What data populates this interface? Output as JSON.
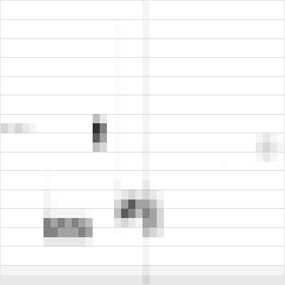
{
  "chart_data": {
    "type": "heatmap",
    "color": "#000000",
    "grid": true,
    "tick_labels": false,
    "xlim": [
      -0.5,
      39.5
    ],
    "ylim": [
      -0.5,
      29.5
    ],
    "zlim": [
      0,
      10
    ],
    "yticks": [
      1.5,
      3.5,
      5.5,
      7.5,
      9.5,
      11.5,
      13.5,
      15.5,
      17.5,
      19.5,
      21.5,
      23.5,
      25.5,
      27.5
    ],
    "cells": [
      [
        3,
        3,
        3,
        3,
        3,
        3,
        3,
        3,
        3,
        3,
        3,
        3,
        3,
        3,
        3,
        3,
        3,
        3,
        3,
        3,
        4,
        3,
        3,
        3,
        3,
        3,
        3,
        3,
        3,
        3,
        3,
        3,
        3,
        3,
        3,
        3,
        3,
        3,
        3,
        3
      ],
      [
        2,
        2,
        2,
        2,
        2,
        2,
        2,
        2,
        2,
        2,
        2,
        2,
        2,
        2,
        2,
        2,
        2,
        2,
        2,
        2,
        3,
        2,
        2,
        2,
        2,
        2,
        2,
        2,
        2,
        2,
        2,
        2,
        2,
        2,
        2,
        2,
        2,
        2,
        2,
        2
      ],
      [
        0,
        0,
        0,
        0,
        0,
        0,
        0,
        0,
        0,
        0,
        0,
        0,
        0,
        0,
        0,
        0,
        0,
        0,
        0,
        0,
        2,
        0,
        0,
        0,
        0,
        0,
        0,
        0,
        0,
        0,
        0,
        0,
        0,
        0,
        0,
        0,
        0,
        0,
        0,
        0
      ],
      [
        0,
        0,
        0,
        0,
        0,
        0,
        0,
        0,
        0,
        0,
        0,
        0,
        0,
        0,
        0,
        0,
        0,
        0,
        0,
        0,
        2,
        0,
        0,
        0,
        0,
        0,
        0,
        0,
        0,
        0,
        0,
        0,
        0,
        0,
        0,
        0,
        0,
        0,
        0,
        0
      ],
      [
        0,
        0,
        0,
        0,
        0,
        0,
        3,
        3,
        3,
        3,
        3,
        3,
        2,
        0,
        0,
        0,
        0,
        0,
        0,
        0,
        2,
        0,
        0,
        0,
        0,
        0,
        0,
        0,
        0,
        0,
        0,
        0,
        0,
        0,
        0,
        0,
        0,
        0,
        0,
        0
      ],
      [
        0,
        0,
        0,
        0,
        0,
        0,
        7,
        7,
        6,
        6,
        6,
        7,
        6,
        0,
        0,
        0,
        1,
        0,
        0,
        0,
        5,
        4,
        3,
        0,
        0,
        0,
        0,
        0,
        0,
        0,
        0,
        0,
        0,
        0,
        0,
        0,
        0,
        0,
        0,
        0
      ],
      [
        0,
        0,
        0,
        0,
        0,
        0,
        7,
        6,
        7,
        6,
        7,
        6,
        5,
        0,
        0,
        0,
        3,
        4,
        3,
        2,
        6,
        6,
        4,
        0,
        0,
        0,
        0,
        0,
        0,
        0,
        0,
        0,
        0,
        0,
        0,
        0,
        0,
        0,
        0,
        0
      ],
      [
        0,
        0,
        0,
        0,
        0,
        0,
        3,
        2,
        2,
        2,
        2,
        2,
        1,
        0,
        0,
        0,
        5,
        8,
        7,
        5,
        7,
        6,
        4,
        0,
        0,
        0,
        0,
        0,
        0,
        0,
        0,
        0,
        0,
        0,
        0,
        0,
        0,
        0,
        0,
        0
      ],
      [
        0,
        0,
        0,
        0,
        0,
        0,
        2,
        1,
        0,
        0,
        0,
        0,
        0,
        0,
        0,
        0,
        4,
        6,
        8,
        6,
        6,
        5,
        3,
        0,
        0,
        0,
        0,
        0,
        0,
        0,
        0,
        0,
        0,
        0,
        0,
        0,
        0,
        0,
        0,
        0
      ],
      [
        0,
        0,
        0,
        0,
        0,
        0,
        2,
        0,
        0,
        0,
        0,
        0,
        0,
        0,
        0,
        0,
        2,
        3,
        4,
        3,
        4,
        3,
        2,
        0,
        0,
        0,
        0,
        0,
        0,
        0,
        0,
        0,
        0,
        0,
        0,
        0,
        0,
        0,
        0,
        0
      ],
      [
        0,
        0,
        0,
        0,
        0,
        0,
        1,
        0,
        0,
        0,
        0,
        0,
        0,
        0,
        0,
        0,
        2,
        0,
        0,
        0,
        3,
        0,
        0,
        0,
        0,
        0,
        0,
        0,
        0,
        0,
        0,
        0,
        0,
        0,
        0,
        0,
        0,
        0,
        0,
        0
      ],
      [
        0,
        0,
        0,
        0,
        0,
        0,
        1,
        0,
        0,
        0,
        0,
        0,
        0,
        0,
        0,
        0,
        1,
        0,
        0,
        0,
        2,
        0,
        0,
        0,
        0,
        0,
        0,
        0,
        0,
        0,
        0,
        0,
        0,
        0,
        0,
        0,
        0,
        0,
        0,
        0
      ],
      [
        0,
        0,
        0,
        0,
        0,
        0,
        0,
        0,
        0,
        0,
        0,
        0,
        0,
        0,
        0,
        0,
        1,
        0,
        0,
        0,
        2,
        0,
        0,
        0,
        0,
        0,
        0,
        0,
        0,
        0,
        0,
        1,
        0,
        0,
        0,
        0,
        0,
        0,
        0,
        0
      ],
      [
        0,
        0,
        0,
        0,
        0,
        0,
        0,
        0,
        0,
        0,
        0,
        0,
        0,
        0,
        0,
        0,
        1,
        0,
        0,
        0,
        2,
        0,
        0,
        0,
        0,
        0,
        0,
        0,
        0,
        0,
        0,
        0,
        0,
        0,
        0,
        0,
        2,
        3,
        2,
        1
      ],
      [
        0,
        0,
        0,
        0,
        0,
        0,
        0,
        0,
        0,
        0,
        0,
        0,
        0,
        5,
        4,
        0,
        1,
        0,
        0,
        0,
        2,
        0,
        0,
        0,
        0,
        0,
        0,
        0,
        0,
        0,
        0,
        0,
        0,
        0,
        0,
        0,
        3,
        4,
        3,
        2
      ],
      [
        0,
        0,
        0,
        0,
        0,
        0,
        0,
        0,
        0,
        0,
        0,
        0,
        0,
        8,
        6,
        0,
        1,
        0,
        0,
        0,
        2,
        0,
        0,
        0,
        0,
        0,
        0,
        0,
        0,
        0,
        0,
        0,
        0,
        0,
        0,
        0,
        2,
        3,
        2,
        1
      ],
      [
        4,
        3,
        4,
        3,
        2,
        0,
        0,
        0,
        0,
        0,
        0,
        0,
        0,
        9,
        7,
        0,
        1,
        0,
        0,
        0,
        2,
        0,
        0,
        0,
        0,
        0,
        0,
        0,
        0,
        0,
        0,
        0,
        0,
        0,
        0,
        0,
        0,
        0,
        0,
        0
      ],
      [
        0,
        0,
        0,
        0,
        0,
        0,
        0,
        0,
        0,
        0,
        0,
        0,
        0,
        5,
        3,
        0,
        1,
        0,
        0,
        0,
        2,
        0,
        0,
        0,
        0,
        0,
        0,
        0,
        0,
        0,
        0,
        0,
        0,
        0,
        0,
        0,
        0,
        0,
        0,
        0
      ],
      [
        0,
        0,
        0,
        0,
        0,
        0,
        0,
        0,
        0,
        0,
        0,
        0,
        0,
        0,
        0,
        0,
        1,
        0,
        0,
        0,
        2,
        0,
        0,
        0,
        0,
        0,
        0,
        0,
        0,
        0,
        0,
        0,
        0,
        0,
        0,
        0,
        0,
        0,
        0,
        0
      ],
      [
        0,
        0,
        0,
        0,
        0,
        0,
        0,
        0,
        0,
        0,
        0,
        0,
        0,
        0,
        0,
        0,
        1,
        0,
        0,
        0,
        2,
        0,
        0,
        0,
        0,
        0,
        0,
        0,
        0,
        0,
        0,
        0,
        0,
        0,
        0,
        0,
        0,
        0,
        0,
        0
      ],
      [
        0,
        0,
        0,
        0,
        0,
        0,
        0,
        0,
        0,
        0,
        0,
        0,
        0,
        0,
        0,
        0,
        1,
        0,
        0,
        0,
        2,
        0,
        0,
        0,
        0,
        0,
        0,
        0,
        0,
        0,
        0,
        0,
        0,
        0,
        0,
        0,
        0,
        0,
        0,
        0
      ],
      [
        0,
        0,
        0,
        0,
        0,
        0,
        0,
        0,
        0,
        0,
        0,
        0,
        0,
        0,
        0,
        0,
        1,
        0,
        0,
        0,
        2,
        0,
        0,
        0,
        0,
        0,
        0,
        0,
        0,
        0,
        0,
        0,
        0,
        0,
        0,
        0,
        0,
        0,
        0,
        0
      ],
      [
        0,
        0,
        0,
        0,
        0,
        0,
        0,
        0,
        0,
        0,
        0,
        0,
        0,
        0,
        0,
        0,
        1,
        0,
        0,
        0,
        2,
        0,
        0,
        0,
        0,
        0,
        0,
        0,
        0,
        0,
        0,
        0,
        0,
        0,
        0,
        0,
        0,
        0,
        0,
        0
      ],
      [
        0,
        0,
        0,
        0,
        0,
        0,
        0,
        0,
        0,
        0,
        0,
        0,
        0,
        0,
        0,
        0,
        1,
        0,
        0,
        0,
        2,
        0,
        0,
        0,
        0,
        0,
        0,
        0,
        0,
        0,
        0,
        0,
        0,
        0,
        0,
        0,
        0,
        0,
        0,
        0
      ],
      [
        0,
        0,
        0,
        0,
        0,
        0,
        0,
        0,
        0,
        0,
        0,
        0,
        0,
        0,
        0,
        0,
        1,
        0,
        0,
        0,
        2,
        0,
        0,
        0,
        0,
        0,
        0,
        0,
        0,
        0,
        0,
        0,
        0,
        0,
        0,
        0,
        0,
        0,
        0,
        0
      ],
      [
        0,
        0,
        0,
        0,
        0,
        0,
        0,
        0,
        0,
        0,
        0,
        0,
        0,
        0,
        0,
        0,
        1,
        0,
        0,
        0,
        2,
        0,
        0,
        0,
        0,
        0,
        0,
        0,
        0,
        0,
        0,
        0,
        0,
        0,
        0,
        0,
        0,
        0,
        0,
        0
      ],
      [
        0,
        0,
        0,
        0,
        0,
        0,
        0,
        0,
        0,
        0,
        0,
        0,
        0,
        0,
        0,
        0,
        1,
        0,
        0,
        0,
        2,
        0,
        0,
        0,
        0,
        0,
        0,
        0,
        0,
        0,
        0,
        0,
        0,
        0,
        0,
        0,
        0,
        0,
        0,
        0
      ],
      [
        0,
        0,
        0,
        0,
        0,
        0,
        0,
        0,
        0,
        0,
        0,
        0,
        0,
        0,
        0,
        0,
        1,
        0,
        0,
        0,
        2,
        0,
        0,
        0,
        0,
        0,
        0,
        0,
        0,
        0,
        0,
        0,
        0,
        0,
        0,
        0,
        0,
        0,
        0,
        0
      ],
      [
        0,
        0,
        0,
        0,
        0,
        0,
        0,
        0,
        0,
        0,
        0,
        0,
        0,
        0,
        0,
        0,
        0,
        0,
        0,
        0,
        2,
        0,
        0,
        0,
        0,
        0,
        0,
        0,
        0,
        0,
        0,
        0,
        0,
        0,
        0,
        0,
        0,
        0,
        0,
        0
      ],
      [
        0,
        0,
        0,
        0,
        0,
        0,
        0,
        0,
        0,
        0,
        0,
        0,
        0,
        0,
        0,
        0,
        0,
        0,
        0,
        0,
        2,
        0,
        0,
        0,
        0,
        0,
        0,
        0,
        0,
        0,
        0,
        0,
        0,
        0,
        0,
        0,
        0,
        0,
        0,
        0
      ]
    ]
  }
}
